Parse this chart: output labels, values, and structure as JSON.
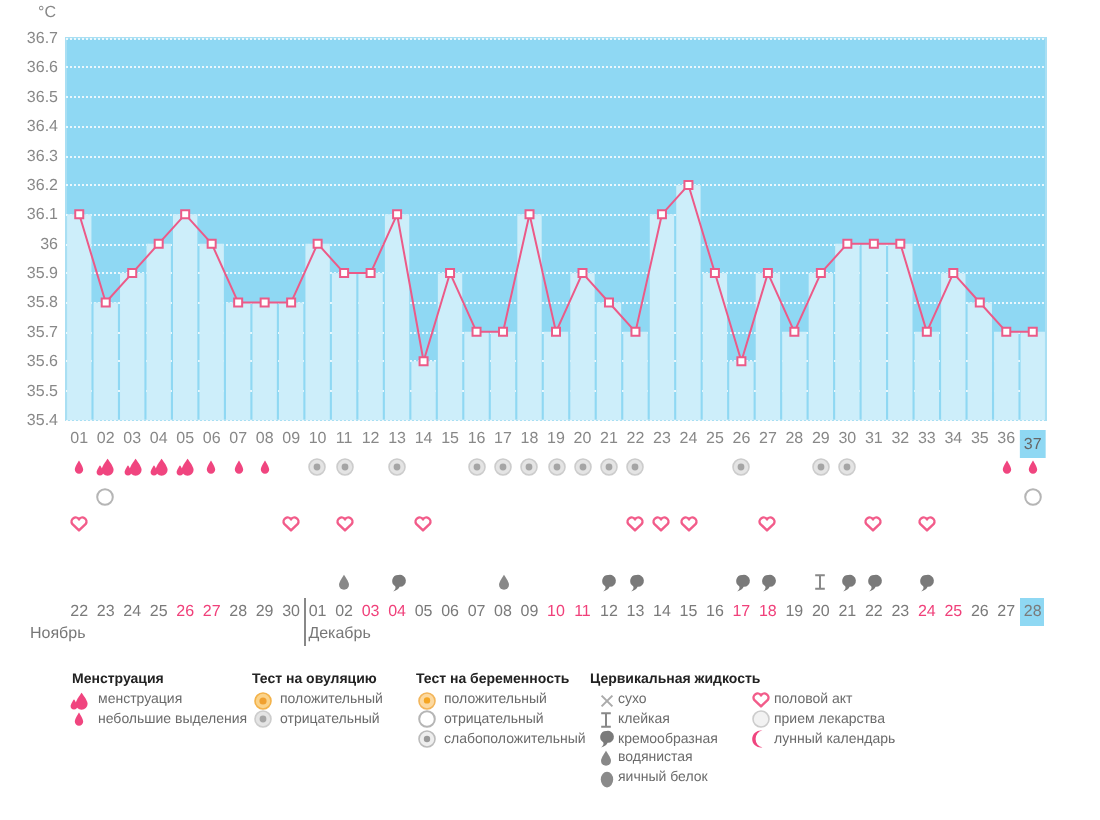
{
  "chart_data": {
    "type": "line",
    "ylabel": "°C",
    "categories": [
      "01",
      "02",
      "03",
      "04",
      "05",
      "06",
      "07",
      "08",
      "09",
      "10",
      "11",
      "12",
      "13",
      "14",
      "15",
      "16",
      "17",
      "18",
      "19",
      "20",
      "21",
      "22",
      "23",
      "24",
      "25",
      "26",
      "27",
      "28",
      "29",
      "30",
      "31",
      "32",
      "33",
      "34",
      "35",
      "36",
      "37"
    ],
    "series": [
      {
        "type": "bar",
        "color": "#cdeefa",
        "values": [
          36.1,
          35.8,
          35.9,
          36.0,
          36.1,
          36.0,
          35.8,
          35.8,
          35.8,
          36.0,
          35.9,
          35.9,
          36.1,
          35.6,
          35.9,
          35.7,
          35.7,
          36.1,
          35.7,
          35.9,
          35.8,
          35.7,
          36.1,
          36.2,
          35.9,
          35.6,
          35.9,
          35.7,
          35.9,
          36.0,
          36.0,
          36.0,
          35.7,
          35.9,
          35.8,
          35.7,
          35.7
        ]
      },
      {
        "color": "#ec5a88",
        "values": [
          36.1,
          35.8,
          35.9,
          36.0,
          36.1,
          36.0,
          35.8,
          35.8,
          35.8,
          36.0,
          35.9,
          35.9,
          36.1,
          35.6,
          35.9,
          35.7,
          35.7,
          36.1,
          35.7,
          35.9,
          35.8,
          35.7,
          36.1,
          36.2,
          35.9,
          35.6,
          35.9,
          35.7,
          35.9,
          36.0,
          36.0,
          36.0,
          35.7,
          35.9,
          35.8,
          35.7,
          35.7
        ]
      }
    ],
    "ylim": [
      35.4,
      36.7
    ],
    "yticks": [
      35.4,
      35.5,
      35.6,
      35.7,
      35.8,
      35.9,
      36,
      36.1,
      36.2,
      36.3,
      36.4,
      36.5,
      36.6,
      36.7
    ],
    "grid": "y",
    "marker": "square",
    "annotations": [
      "22",
      "23",
      "24",
      "25",
      "26",
      "27",
      "28",
      "29",
      "30",
      "01",
      "02",
      "03",
      "04",
      "05",
      "06",
      "07",
      "08",
      "09",
      "10",
      "11",
      "12",
      "13",
      "14",
      "15",
      "16",
      "17",
      "18",
      "19",
      "20",
      "21",
      "22",
      "23",
      "24",
      "25",
      "26",
      "27",
      "28",
      "Ноябрь",
      "Декабрь",
      "Менструация",
      "менструация",
      "небольшие выделения",
      "Тест на овуляцию",
      "положительный",
      "отрицательный",
      "Тест на беременность",
      "положительный",
      "отрицательный",
      "слабоположительный",
      "Цервикальная жидкость",
      "сухо",
      "клейкая",
      "кремообразная",
      "водянистая",
      "яичный белок",
      "половой акт",
      "прием лекарства",
      "лунный календарь"
    ]
  }
}
